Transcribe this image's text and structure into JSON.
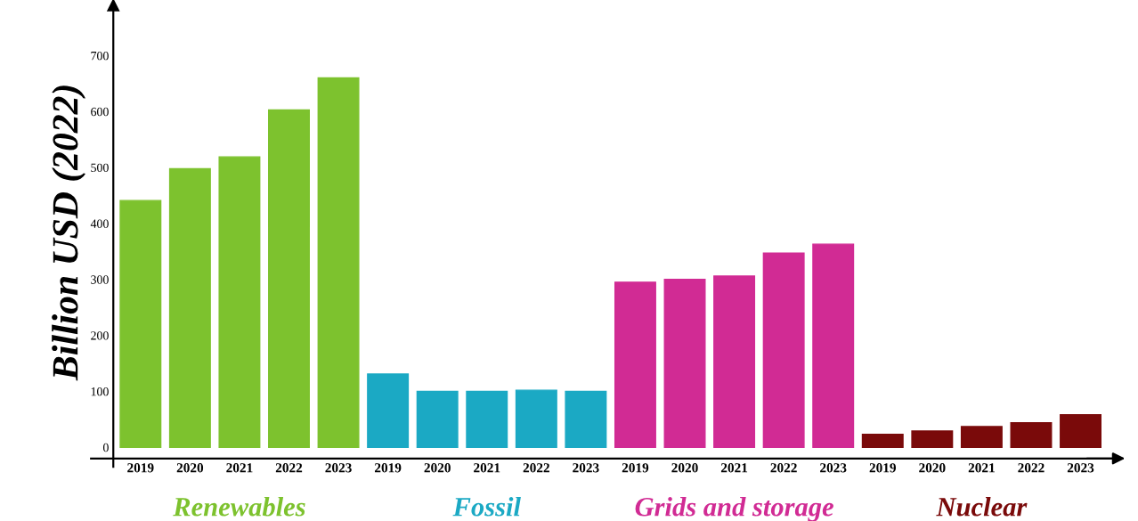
{
  "chart_data": {
    "type": "bar",
    "ylabel": "Billion USD (2022)",
    "categories": [
      "2019",
      "2020",
      "2021",
      "2022",
      "2023",
      "2019",
      "2020",
      "2021",
      "2022",
      "2023",
      "2019",
      "2020",
      "2021",
      "2022",
      "2023",
      "2019",
      "2020",
      "2021",
      "2022",
      "2023"
    ],
    "series": [
      {
        "name": "Renewables",
        "color": "#7dc22e",
        "values": [
          441,
          498,
          519,
          603,
          660,
          null,
          null,
          null,
          null,
          null,
          null,
          null,
          null,
          null,
          null,
          null,
          null,
          null,
          null,
          null
        ]
      },
      {
        "name": "Fossil",
        "color": "#1ba9c4",
        "values": [
          null,
          null,
          null,
          null,
          null,
          131,
          100,
          100,
          102,
          100,
          null,
          null,
          null,
          null,
          null,
          null,
          null,
          null,
          null,
          null
        ]
      },
      {
        "name": "Grids and storage",
        "color": "#d12b94",
        "values": [
          null,
          null,
          null,
          null,
          null,
          null,
          null,
          null,
          null,
          null,
          295,
          300,
          306,
          347,
          363,
          null,
          null,
          null,
          null,
          null
        ]
      },
      {
        "name": "Nuclear",
        "color": "#7a0a0a",
        "values": [
          null,
          null,
          null,
          null,
          null,
          null,
          null,
          null,
          null,
          null,
          null,
          null,
          null,
          null,
          null,
          23,
          29,
          37,
          44,
          58
        ]
      }
    ],
    "ylim": [
      -20,
      790
    ],
    "yticks": [
      0,
      100,
      200,
      300,
      400,
      500,
      600,
      700
    ],
    "grid": false,
    "legend": false
  }
}
